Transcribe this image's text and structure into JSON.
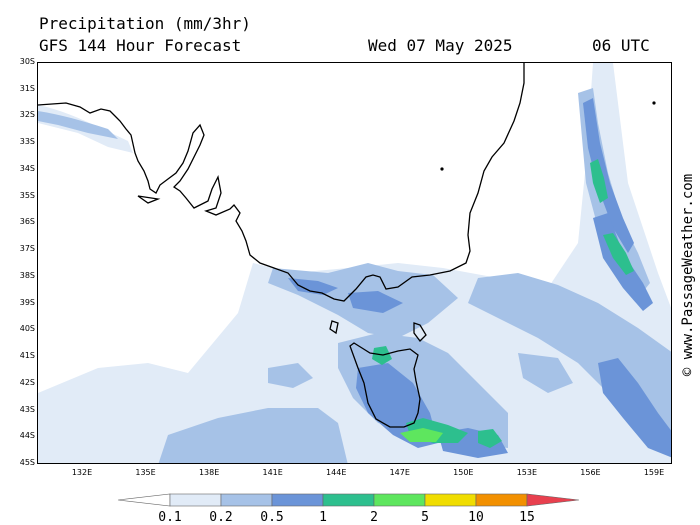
{
  "header": {
    "title_line1": "Precipitation (mm/3hr)",
    "title_line2": "GFS 144 Hour Forecast",
    "date": "Wed 07 May 2025",
    "time": "06 UTC"
  },
  "map": {
    "lat_labels": [
      "30S",
      "31S",
      "32S",
      "33S",
      "34S",
      "35S",
      "36S",
      "37S",
      "38S",
      "39S",
      "40S",
      "41S",
      "42S",
      "43S",
      "44S",
      "45S"
    ],
    "lon_labels": [
      "132E",
      "135E",
      "138E",
      "141E",
      "144E",
      "147E",
      "150E",
      "153E",
      "156E",
      "159E"
    ],
    "icons": {
      "coastline": "coastline-outline",
      "land": "australia-landmass",
      "island": "tasmania-island"
    }
  },
  "legend": {
    "labels": [
      "0.1",
      "0.2",
      "0.5",
      "1",
      "2",
      "5",
      "10",
      "15"
    ],
    "colors": [
      "#e1ebf7",
      "#a6c2e7",
      "#6b94d8",
      "#2dbf8e",
      "#5ee65e",
      "#f0dd00",
      "#f29000",
      "#e8404e"
    ]
  },
  "watermark": "© www.PassageWeather.com"
}
